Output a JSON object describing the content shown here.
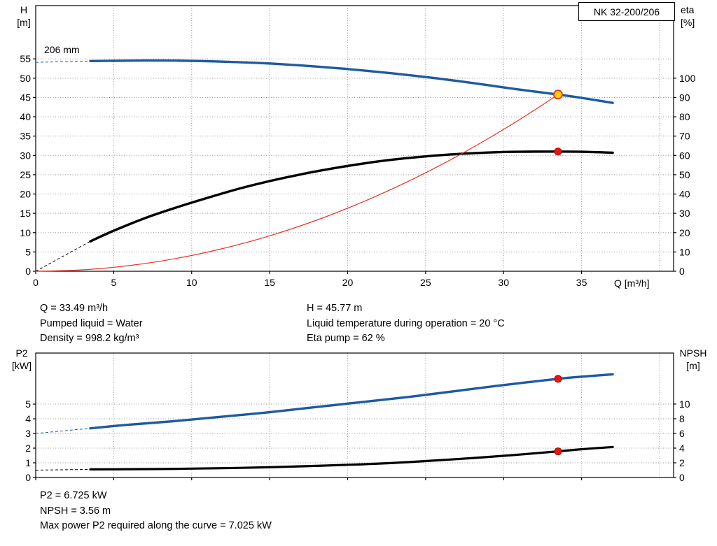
{
  "info_top": {
    "left": [
      "Q = 33.49 m³/h",
      "Pumped liquid = Water",
      "Density = 998.2 kg/m³"
    ],
    "right": [
      "H = 45.77 m",
      "Liquid temperature during operation = 20 °C",
      "Eta pump = 62 %"
    ]
  },
  "info_bottom": [
    "P2 = 6.725 kW",
    "NPSH = 3.56 m",
    "Max power P2 required along the curve = 7.025 kW"
  ],
  "colors": {
    "curve_blue": "#1d5ba0",
    "curve_black": "#000000",
    "system_red": "#e63329",
    "duty_yellow": "#ffd400",
    "point_red": "#e8150d",
    "grid_gray": "#949494"
  },
  "chart_data": [
    {
      "id": "hq",
      "type": "line",
      "title": "NK 32-200/206",
      "curve_label": "206 mm",
      "x_label": "Q [m³/h]",
      "y_left_unit": [
        "H",
        "[m]"
      ],
      "y_right_unit": [
        "eta",
        "[%]"
      ],
      "x_ticks": [
        0,
        5,
        10,
        15,
        20,
        25,
        30,
        35
      ],
      "x_grid": [
        5,
        10,
        15,
        20,
        25,
        30,
        35,
        40
      ],
      "y_left_ticks": [
        0,
        5,
        10,
        15,
        20,
        25,
        30,
        35,
        40,
        45,
        50,
        55
      ],
      "y_right_ticks": [
        0,
        10,
        20,
        30,
        40,
        50,
        60,
        70,
        80,
        90,
        100
      ],
      "x_range": [
        0,
        40.9
      ],
      "y_left_range": [
        0,
        68.8
      ],
      "y_right_range": [
        0,
        137.6
      ],
      "legend_position": "none",
      "grid": true,
      "series": [
        {
          "name": "head-curve",
          "axis": "left",
          "color": "#1d5ba0",
          "width": 3.4,
          "dash_lead": [
            [
              0,
              54.1
            ],
            [
              3.5,
              54.45
            ]
          ],
          "points": [
            [
              3.5,
              54.45
            ],
            [
              5,
              54.5
            ],
            [
              7,
              54.58
            ],
            [
              9,
              54.55
            ],
            [
              11,
              54.4
            ],
            [
              13,
              54.15
            ],
            [
              15,
              53.8
            ],
            [
              17,
              53.3
            ],
            [
              19,
              52.7
            ],
            [
              21,
              52.0
            ],
            [
              23,
              51.2
            ],
            [
              25,
              50.3
            ],
            [
              27,
              49.3
            ],
            [
              29,
              48.2
            ],
            [
              31,
              47.05
            ],
            [
              33.49,
              45.77
            ],
            [
              35,
              44.9
            ],
            [
              37,
              43.6
            ]
          ]
        },
        {
          "name": "efficiency-curve",
          "axis": "right",
          "color": "#000000",
          "width": 3.4,
          "dash_lead": [
            [
              0,
              0
            ],
            [
              3.5,
              15.5
            ]
          ],
          "points": [
            [
              3.5,
              15.5
            ],
            [
              5,
              21
            ],
            [
              7,
              27.5
            ],
            [
              9,
              33
            ],
            [
              11,
              38
            ],
            [
              13,
              42.7
            ],
            [
              15,
              46.7
            ],
            [
              17,
              50.2
            ],
            [
              19,
              53.2
            ],
            [
              21,
              55.8
            ],
            [
              23,
              57.9
            ],
            [
              25,
              59.5
            ],
            [
              27,
              60.7
            ],
            [
              29,
              61.5
            ],
            [
              31,
              61.9
            ],
            [
              33.49,
              62
            ],
            [
              35,
              61.9
            ],
            [
              37,
              61.4
            ]
          ]
        },
        {
          "name": "system-resistance-curve",
          "axis": "left",
          "color": "#e63329",
          "width": 1.2,
          "points": [
            [
              0,
              0
            ],
            [
              3,
              0.37
            ],
            [
              6,
              1.47
            ],
            [
              9,
              3.31
            ],
            [
              12,
              5.88
            ],
            [
              15,
              9.18
            ],
            [
              18,
              13.22
            ],
            [
              21,
              18.0
            ],
            [
              24,
              23.5
            ],
            [
              27,
              29.75
            ],
            [
              30,
              36.73
            ],
            [
              32,
              41.78
            ],
            [
              33.49,
              45.77
            ]
          ]
        }
      ],
      "markers": [
        {
          "name": "duty-point-marker",
          "axis": "left",
          "x": 33.49,
          "y": 45.77,
          "r": 6,
          "fill": "#ffd400",
          "stroke": "#e63329",
          "stroke_w": 1.8
        },
        {
          "name": "efficiency-point-marker",
          "axis": "right",
          "x": 33.49,
          "y": 62,
          "r": 5,
          "fill": "#e8150d",
          "stroke": "#b00000",
          "stroke_w": 1
        }
      ]
    },
    {
      "id": "p2npsh",
      "type": "line",
      "title": "",
      "x_label": "",
      "y_left_unit": [
        "P2",
        "[kW]"
      ],
      "y_right_unit": [
        "NPSH",
        "[m]"
      ],
      "x_ticks": [
        0,
        5,
        10,
        15,
        20,
        25,
        30,
        35
      ],
      "x_grid": [
        5,
        10,
        15,
        20,
        25,
        30,
        35,
        40
      ],
      "y_left_ticks": [
        0,
        1,
        2,
        3,
        4,
        5
      ],
      "y_right_ticks": [
        0,
        2,
        4,
        6,
        8,
        10
      ],
      "x_range": [
        0,
        40.9
      ],
      "y_left_range": [
        0,
        8.48
      ],
      "y_right_range": [
        0,
        16.95
      ],
      "legend_position": "none",
      "grid": true,
      "series": [
        {
          "name": "p2-curve",
          "axis": "left",
          "color": "#1d5ba0",
          "width": 3.4,
          "dash_lead": [
            [
              0,
              3.0
            ],
            [
              3.5,
              3.35
            ]
          ],
          "points": [
            [
              3.5,
              3.35
            ],
            [
              6,
              3.6
            ],
            [
              9,
              3.85
            ],
            [
              12,
              4.15
            ],
            [
              15,
              4.45
            ],
            [
              18,
              4.8
            ],
            [
              21,
              5.15
            ],
            [
              24,
              5.5
            ],
            [
              27,
              5.9
            ],
            [
              30,
              6.3
            ],
            [
              33.49,
              6.725
            ],
            [
              35,
              6.87
            ],
            [
              37,
              7.03
            ]
          ]
        },
        {
          "name": "npsh-curve",
          "axis": "right",
          "color": "#000000",
          "width": 3.2,
          "dash_lead": [
            [
              0,
              1.0
            ],
            [
              3.5,
              1.1
            ]
          ],
          "points": [
            [
              3.5,
              1.1
            ],
            [
              6,
              1.13
            ],
            [
              9,
              1.18
            ],
            [
              12,
              1.27
            ],
            [
              15,
              1.4
            ],
            [
              18,
              1.58
            ],
            [
              21,
              1.8
            ],
            [
              24,
              2.1
            ],
            [
              27,
              2.5
            ],
            [
              30,
              2.95
            ],
            [
              33.49,
              3.56
            ],
            [
              35,
              3.85
            ],
            [
              37,
              4.15
            ]
          ]
        }
      ],
      "markers": [
        {
          "name": "p2-point-marker",
          "axis": "left",
          "x": 33.49,
          "y": 6.725,
          "r": 5,
          "fill": "#e8150d",
          "stroke": "#b00000",
          "stroke_w": 1
        },
        {
          "name": "npsh-point-marker",
          "axis": "right",
          "x": 33.49,
          "y": 3.56,
          "r": 5,
          "fill": "#e8150d",
          "stroke": "#b00000",
          "stroke_w": 1
        }
      ]
    }
  ]
}
